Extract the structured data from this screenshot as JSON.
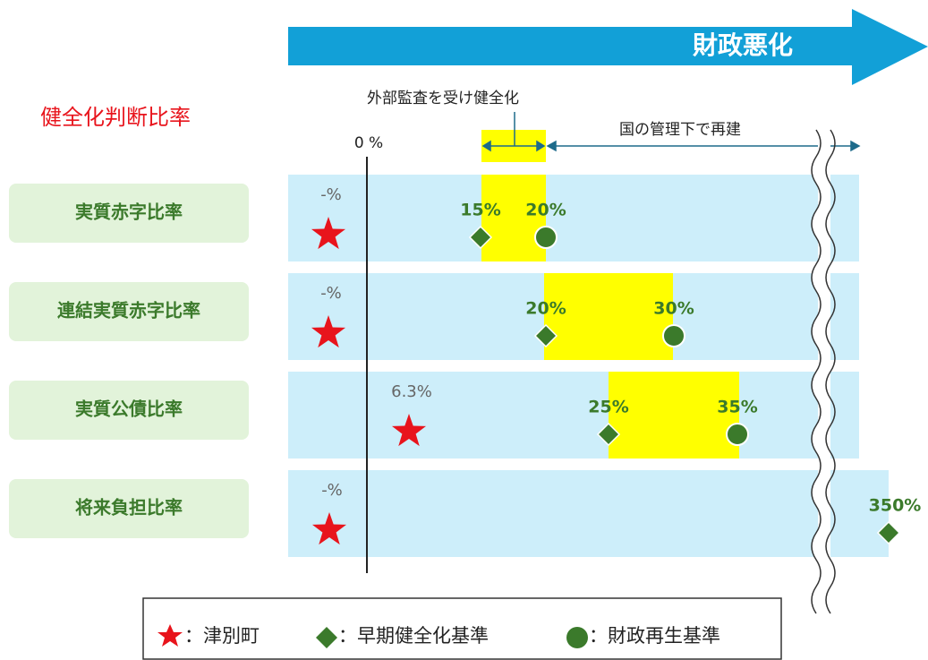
{
  "banner": "財政悪化",
  "title": "健全化判断比率",
  "zero_label": "0 %",
  "zones": [
    {
      "label": "外部監査を受け健全化"
    },
    {
      "label": "国の管理下で再建"
    }
  ],
  "rows": [
    {
      "name": "実質赤字比率",
      "town_value": "-%",
      "early": "15%",
      "rebuild": "20%"
    },
    {
      "name": "連結実質赤字比率",
      "town_value": "-%",
      "early": "20%",
      "rebuild": "30%"
    },
    {
      "name": "実質公債比率",
      "town_value": "6.3%",
      "early": "25%",
      "rebuild": "35%"
    },
    {
      "name": "将来負担比率",
      "town_value": "-%",
      "early": "350%"
    }
  ],
  "legend": [
    {
      "label": "：津別町"
    },
    {
      "label": "：早期健全化基準"
    },
    {
      "label": "：財政再生基準"
    }
  ]
}
